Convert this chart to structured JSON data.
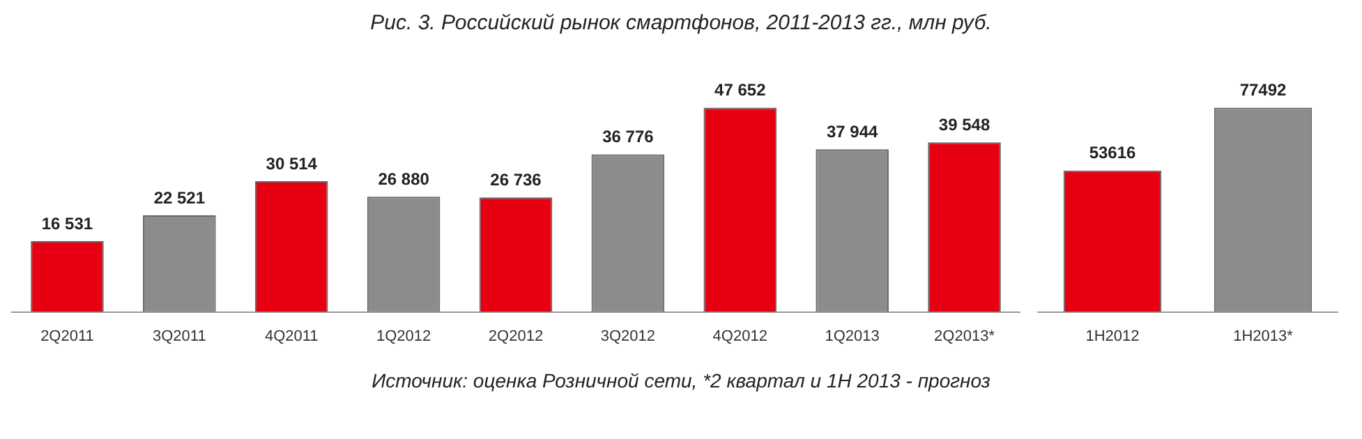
{
  "chart_data": [
    {
      "type": "bar",
      "title": "Рис. 3. Российский рынок смартфонов, 2011-2013 гг., млн руб.",
      "categories": [
        "2Q2011",
        "3Q2011",
        "4Q2011",
        "1Q2012",
        "2Q2012",
        "3Q2012",
        "4Q2012",
        "1Q2013",
        "2Q2013*"
      ],
      "values": [
        16531,
        22521,
        30514,
        26880,
        26736,
        36776,
        47652,
        37944,
        39548
      ],
      "value_labels": [
        "16 531",
        "22 521",
        "30 514",
        "26 880",
        "26 736",
        "36 776",
        "47 652",
        "37 944",
        "39 548"
      ],
      "colors": [
        "#e60012",
        "#8c8c8c",
        "#e60012",
        "#8c8c8c",
        "#e60012",
        "#8c8c8c",
        "#e60012",
        "#8c8c8c",
        "#e60012"
      ],
      "annotations": [
        "Источник: оценка Розничной сети, *2 квартал и 1H 2013 - прогноз"
      ]
    },
    {
      "type": "bar",
      "categories": [
        "1H2012",
        "1H2013*"
      ],
      "values": [
        53616,
        77492
      ],
      "value_labels": [
        "53616",
        "77492"
      ],
      "colors": [
        "#e60012",
        "#8c8c8c"
      ]
    }
  ]
}
